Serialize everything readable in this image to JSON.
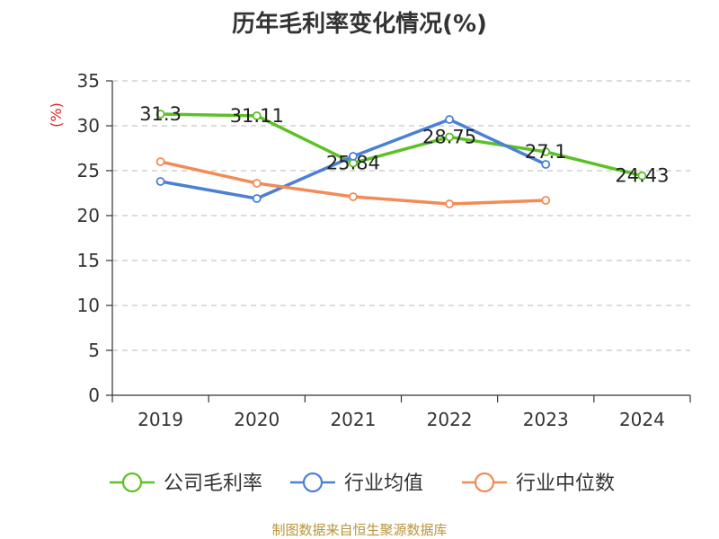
{
  "chart_data": {
    "type": "line",
    "title": "历年毛利率变化情况(%)",
    "unit_label": "(%)",
    "categories": [
      "2019",
      "2020",
      "2021",
      "2022",
      "2023",
      "2024"
    ],
    "ylim": [
      0,
      35
    ],
    "yticks": [
      "0",
      "5",
      "10",
      "15",
      "20",
      "25",
      "30",
      "35"
    ],
    "grid": true,
    "legend_position": "bottom",
    "series": [
      {
        "name": "公司毛利率",
        "color": "#5cc126",
        "values": [
          31.3,
          31.11,
          25.84,
          28.75,
          27.1,
          24.43
        ],
        "labels": [
          "31.3",
          "31.11",
          "25.84",
          "28.75",
          "27.1",
          "24.43"
        ]
      },
      {
        "name": "行业均值",
        "color": "#4b80d4",
        "values": [
          23.8,
          21.9,
          26.6,
          30.7,
          25.7,
          null
        ]
      },
      {
        "name": "行业中位数",
        "color": "#f28b55",
        "values": [
          26.0,
          23.6,
          22.1,
          21.3,
          21.7,
          null
        ]
      }
    ],
    "source": "制图数据来自恒生聚源数据库"
  }
}
